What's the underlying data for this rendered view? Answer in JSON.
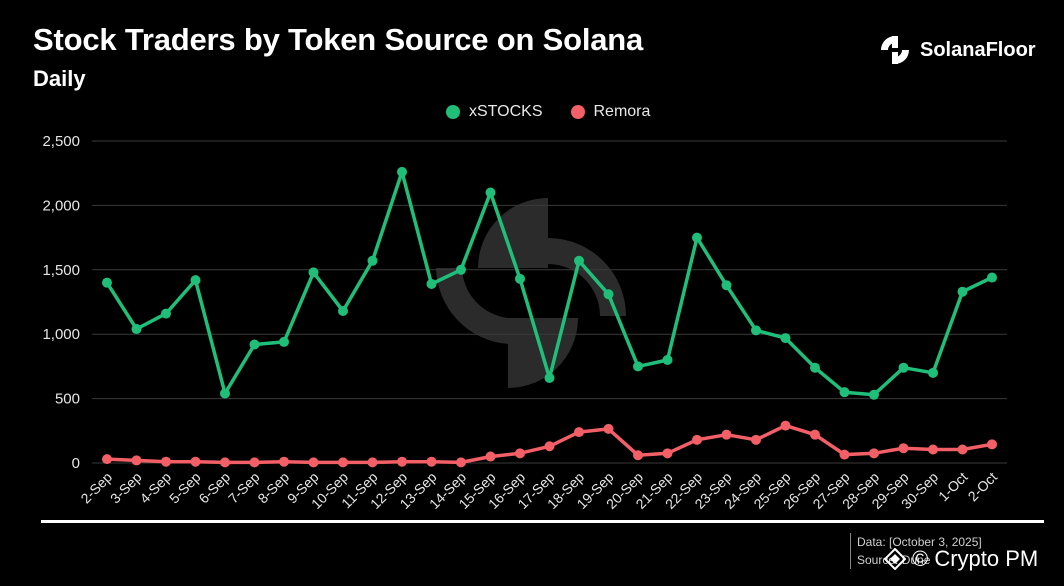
{
  "header": {
    "title": "Stock Traders by Token Source on Solana",
    "subtitle": "Daily",
    "brand": "SolanaFloor"
  },
  "footer": {
    "data_line": "Data: [October 3, 2025]",
    "source_line": "Source: Dune",
    "credit": "© Crypto PM"
  },
  "icons": {
    "brand_logo": "solanafloor-logo-icon",
    "credit_logo": "cryptopm-diamond-icon"
  },
  "colors": {
    "xstocks": "#1fbf7a",
    "remora": "#f25f66",
    "grid": "#3a3a3a",
    "background": "#000000"
  },
  "chart_data": {
    "type": "line",
    "title": "Stock Traders by Token Source on Solana",
    "subtitle": "Daily",
    "xlabel": "",
    "ylabel": "",
    "ylim": [
      0,
      2500
    ],
    "yticks": [
      0,
      500,
      1000,
      1500,
      2000,
      2500
    ],
    "ytick_labels": [
      "0",
      "500",
      "1,000",
      "1,500",
      "2,000",
      "2,500"
    ],
    "grid": true,
    "legend_position": "top-center",
    "categories": [
      "2-Sep",
      "3-Sep",
      "4-Sep",
      "5-Sep",
      "6-Sep",
      "7-Sep",
      "8-Sep",
      "9-Sep",
      "10-Sep",
      "11-Sep",
      "12-Sep",
      "13-Sep",
      "14-Sep",
      "15-Sep",
      "16-Sep",
      "17-Sep",
      "18-Sep",
      "19-Sep",
      "20-Sep",
      "21-Sep",
      "22-Sep",
      "23-Sep",
      "24-Sep",
      "25-Sep",
      "26-Sep",
      "27-Sep",
      "28-Sep",
      "29-Sep",
      "30-Sep",
      "1-Oct",
      "2-Oct"
    ],
    "series": [
      {
        "name": "xSTOCKS",
        "color": "#1fbf7a",
        "values": [
          1400,
          1040,
          1160,
          1420,
          540,
          920,
          940,
          1480,
          1180,
          1570,
          2260,
          1390,
          1500,
          2100,
          1430,
          660,
          1570,
          1310,
          750,
          800,
          1750,
          1380,
          1030,
          970,
          740,
          550,
          530,
          740,
          700,
          1330,
          1440
        ]
      },
      {
        "name": "Remora",
        "color": "#f25f66",
        "values": [
          30,
          20,
          10,
          10,
          5,
          5,
          10,
          5,
          5,
          5,
          10,
          10,
          5,
          50,
          75,
          130,
          240,
          265,
          60,
          75,
          180,
          220,
          180,
          290,
          220,
          65,
          75,
          115,
          105,
          105,
          145
        ]
      }
    ]
  }
}
